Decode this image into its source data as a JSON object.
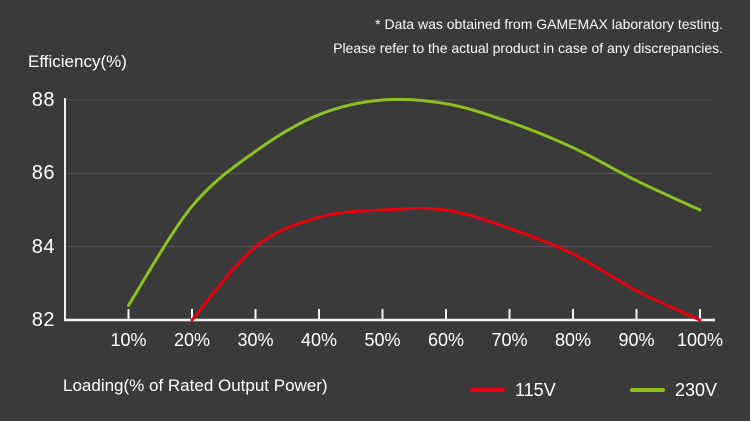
{
  "annotation": {
    "line1": "* Data was obtained from GAMEMAX laboratory testing.",
    "line2": "Please refer to the actual product in case of any discrepancies."
  },
  "chart_data": {
    "type": "line",
    "title": "Efficiency(%)",
    "xlabel": "Loading(% of Rated Output Power)",
    "ylabel": "Efficiency(%)",
    "xlim": [
      0,
      100
    ],
    "ylim": [
      82,
      88
    ],
    "x_ticks": [
      10,
      20,
      30,
      40,
      50,
      60,
      70,
      80,
      90,
      100
    ],
    "x_tick_labels": [
      "10%",
      "20%",
      "30%",
      "40%",
      "50%",
      "60%",
      "70%",
      "80%",
      "90%",
      "100%"
    ],
    "y_ticks": [
      82,
      84,
      86,
      88
    ],
    "y_tick_labels": [
      "82",
      "84",
      "86",
      "88"
    ],
    "grid": "horizontal gridlines at 84, 86, 88; bottom axis doubles as 82 line",
    "legend_position": "below chart, bottom right",
    "series": [
      {
        "name": "115V",
        "color": "#e60012",
        "x": [
          20,
          30,
          40,
          50,
          60,
          70,
          80,
          90,
          100
        ],
        "y": [
          82.0,
          84.0,
          84.8,
          85.0,
          85.0,
          84.5,
          83.8,
          82.8,
          82.0
        ]
      },
      {
        "name": "230V",
        "color": "#8dc21e",
        "x": [
          10,
          20,
          30,
          40,
          50,
          60,
          70,
          80,
          90,
          100
        ],
        "y": [
          82.4,
          85.1,
          86.6,
          87.6,
          88.0,
          87.9,
          87.4,
          86.7,
          85.8,
          85.0
        ]
      }
    ]
  },
  "colors": {
    "background": "#3a3a3a",
    "axis": "#f1f1f1",
    "grid": "#56565a",
    "text": "#ffffff",
    "series_115v": "#e60012",
    "series_230v": "#8dc21e"
  }
}
